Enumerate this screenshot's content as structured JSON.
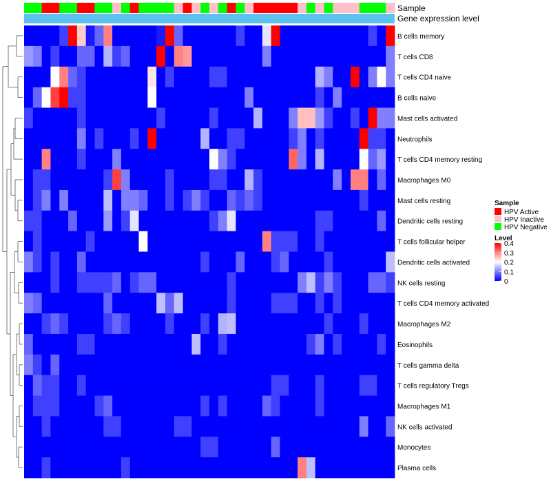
{
  "chart_data": {
    "type": "heatmap",
    "title": "",
    "annotation_tracks": [
      "Sample",
      "Gene expression level"
    ],
    "sample_annotation": [
      "HPV Negative",
      "HPV Negative",
      "HPV Active",
      "HPV Active",
      "HPV Negative",
      "HPV Negative",
      "HPV Active",
      "HPV Active",
      "HPV Negative",
      "HPV Negative",
      "HPV Inactive",
      "HPV Negative",
      "HPV Active",
      "HPV Negative",
      "HPV Negative",
      "HPV Negative",
      "HPV Negative",
      "HPV Inactive",
      "HPV Active",
      "HPV Inactive",
      "HPV Negative",
      "HPV Inactive",
      "HPV Negative",
      "HPV Active",
      "HPV Negative",
      "HPV Inactive",
      "HPV Active",
      "HPV Active",
      "HPV Active",
      "HPV Active",
      "HPV Active",
      "HPV Inactive",
      "HPV Negative",
      "HPV Inactive",
      "HPV Negative",
      "HPV Inactive",
      "HPV Inactive",
      "HPV Inactive",
      "HPV Negative",
      "HPV Negative",
      "HPV Negative",
      "HPV Inactive"
    ],
    "gene_expression_color": "#5bc1ee",
    "rows": [
      "B cells memory",
      "T cells CD8",
      "T cells CD4 naive",
      "B cells naive",
      "Mast cells activated",
      "Neutrophils",
      "T cells CD4 memory resting",
      "Macrophages M0",
      "Mast cells resting",
      "Dendritic cells resting",
      "T cells follicular helper",
      "Dendritic cells activated",
      "NK cells resting",
      "T cells CD4 memory activated",
      "Macrophages M2",
      "Eosinophils",
      "T cells gamma delta",
      "T cells regulatory  Tregs",
      "Macrophages M1",
      "NK cells activated",
      "Monocytes",
      "Plasma cells"
    ],
    "n_columns": 42,
    "values": [
      [
        0.0,
        0.0,
        0.0,
        0.0,
        0.05,
        0.4,
        0.24,
        0.02,
        0.08,
        0.3,
        0.0,
        0.0,
        0.0,
        0.0,
        0.0,
        0.02,
        0.4,
        0.08,
        0.0,
        0.0,
        0.0,
        0.0,
        0.0,
        0.0,
        0.05,
        0.0,
        0.0,
        0.18,
        0.4,
        0.0,
        0.0,
        0.0,
        0.0,
        0.0,
        0.0,
        0.0,
        0.0,
        0.0,
        0.0,
        0.05,
        0.0,
        0.4
      ],
      [
        0.12,
        0.1,
        0.0,
        0.05,
        0.0,
        0.0,
        0.08,
        0.08,
        0.0,
        0.14,
        0.05,
        0.08,
        0.0,
        0.0,
        0.0,
        0.4,
        0.0,
        0.3,
        0.28,
        0.0,
        0.0,
        0.0,
        0.0,
        0.0,
        0.0,
        0.0,
        0.0,
        0.1,
        0.0,
        0.0,
        0.0,
        0.0,
        0.0,
        0.0,
        0.0,
        0.0,
        0.0,
        0.0,
        0.0,
        0.0,
        0.0,
        0.1
      ],
      [
        0.0,
        0.0,
        0.0,
        0.2,
        0.3,
        0.08,
        0.05,
        0.0,
        0.0,
        0.0,
        0.0,
        0.0,
        0.0,
        0.0,
        0.22,
        0.0,
        0.05,
        0.0,
        0.0,
        0.0,
        0.0,
        0.05,
        0.05,
        0.0,
        0.0,
        0.0,
        0.0,
        0.0,
        0.0,
        0.0,
        0.0,
        0.0,
        0.0,
        0.14,
        0.1,
        0.0,
        0.0,
        0.4,
        0.0,
        0.1,
        0.2,
        0.1
      ],
      [
        0.0,
        0.08,
        0.2,
        0.35,
        0.4,
        0.05,
        0.05,
        0.0,
        0.0,
        0.0,
        0.0,
        0.0,
        0.0,
        0.0,
        0.2,
        0.0,
        0.0,
        0.0,
        0.0,
        0.0,
        0.0,
        0.0,
        0.0,
        0.0,
        0.0,
        0.1,
        0.0,
        0.0,
        0.0,
        0.0,
        0.0,
        0.0,
        0.0,
        0.05,
        0.0,
        0.1,
        0.0,
        0.0,
        0.0,
        0.0,
        0.0,
        0.0
      ],
      [
        0.05,
        0.0,
        0.0,
        0.0,
        0.0,
        0.0,
        0.05,
        0.0,
        0.0,
        0.0,
        0.0,
        0.0,
        0.0,
        0.0,
        0.0,
        0.05,
        0.0,
        0.0,
        0.0,
        0.0,
        0.0,
        0.05,
        0.0,
        0.0,
        0.0,
        0.0,
        0.14,
        0.0,
        0.0,
        0.0,
        0.1,
        0.25,
        0.25,
        0.12,
        0.05,
        0.0,
        0.0,
        0.05,
        0.0,
        0.4,
        0.1,
        0.1
      ],
      [
        0.0,
        0.0,
        0.0,
        0.0,
        0.0,
        0.0,
        0.1,
        0.0,
        0.05,
        0.0,
        0.0,
        0.0,
        0.05,
        0.0,
        0.4,
        0.0,
        0.0,
        0.0,
        0.0,
        0.0,
        0.14,
        0.0,
        0.0,
        0.05,
        0.05,
        0.0,
        0.0,
        0.0,
        0.0,
        0.0,
        0.05,
        0.1,
        0.0,
        0.05,
        0.0,
        0.0,
        0.0,
        0.0,
        0.4,
        0.05,
        0.05,
        0.0
      ],
      [
        0.0,
        0.0,
        0.3,
        0.0,
        0.0,
        0.0,
        0.05,
        0.0,
        0.0,
        0.0,
        0.1,
        0.0,
        0.0,
        0.0,
        0.0,
        0.0,
        0.0,
        0.0,
        0.0,
        0.0,
        0.0,
        0.2,
        0.1,
        0.05,
        0.0,
        0.0,
        0.0,
        0.0,
        0.0,
        0.0,
        0.32,
        0.1,
        0.0,
        0.14,
        0.0,
        0.0,
        0.0,
        0.0,
        0.2,
        0.08,
        0.12,
        0.0
      ],
      [
        0.0,
        0.05,
        0.05,
        0.0,
        0.0,
        0.0,
        0.0,
        0.0,
        0.0,
        0.05,
        0.35,
        0.1,
        0.0,
        0.0,
        0.0,
        0.0,
        0.05,
        0.0,
        0.0,
        0.0,
        0.0,
        0.05,
        0.05,
        0.0,
        0.0,
        0.14,
        0.05,
        0.0,
        0.0,
        0.0,
        0.0,
        0.0,
        0.0,
        0.0,
        0.0,
        0.1,
        0.0,
        0.3,
        0.3,
        0.0,
        0.08,
        0.0
      ],
      [
        0.0,
        0.05,
        0.1,
        0.0,
        0.1,
        0.0,
        0.0,
        0.0,
        0.0,
        0.15,
        0.0,
        0.1,
        0.1,
        0.08,
        0.0,
        0.0,
        0.05,
        0.0,
        0.05,
        0.1,
        0.05,
        0.0,
        0.0,
        0.08,
        0.05,
        0.08,
        0.05,
        0.0,
        0.0,
        0.0,
        0.0,
        0.0,
        0.0,
        0.0,
        0.0,
        0.0,
        0.0,
        0.0,
        0.05,
        0.0,
        0.0,
        0.0
      ],
      [
        0.05,
        0.05,
        0.0,
        0.0,
        0.0,
        0.08,
        0.0,
        0.0,
        0.0,
        0.12,
        0.0,
        0.05,
        0.18,
        0.0,
        0.0,
        0.0,
        0.0,
        0.0,
        0.0,
        0.0,
        0.0,
        0.05,
        0.1,
        0.18,
        0.0,
        0.0,
        0.0,
        0.0,
        0.0,
        0.0,
        0.0,
        0.0,
        0.0,
        0.05,
        0.05,
        0.0,
        0.0,
        0.0,
        0.0,
        0.0,
        0.08,
        0.0
      ],
      [
        0.0,
        0.05,
        0.0,
        0.0,
        0.0,
        0.0,
        0.0,
        0.05,
        0.0,
        0.0,
        0.0,
        0.0,
        0.0,
        0.2,
        0.0,
        0.0,
        0.0,
        0.0,
        0.0,
        0.0,
        0.0,
        0.0,
        0.0,
        0.0,
        0.0,
        0.0,
        0.0,
        0.3,
        0.05,
        0.05,
        0.05,
        0.0,
        0.0,
        0.05,
        0.0,
        0.0,
        0.0,
        0.0,
        0.0,
        0.0,
        0.0,
        0.0
      ],
      [
        0.1,
        0.05,
        0.0,
        0.05,
        0.0,
        0.0,
        0.08,
        0.0,
        0.0,
        0.0,
        0.0,
        0.0,
        0.0,
        0.0,
        0.0,
        0.0,
        0.0,
        0.0,
        0.0,
        0.0,
        0.05,
        0.0,
        0.0,
        0.0,
        0.08,
        0.0,
        0.0,
        0.0,
        0.05,
        0.08,
        0.0,
        0.0,
        0.0,
        0.0,
        0.05,
        0.0,
        0.0,
        0.0,
        0.0,
        0.0,
        0.0,
        0.15
      ],
      [
        0.0,
        0.0,
        0.0,
        0.05,
        0.0,
        0.0,
        0.05,
        0.05,
        0.05,
        0.05,
        0.08,
        0.0,
        0.05,
        0.08,
        0.08,
        0.0,
        0.0,
        0.0,
        0.0,
        0.0,
        0.0,
        0.0,
        0.0,
        0.05,
        0.0,
        0.0,
        0.0,
        0.0,
        0.0,
        0.0,
        0.0,
        0.1,
        0.15,
        0.05,
        0.1,
        0.05,
        0.0,
        0.0,
        0.0,
        0.08,
        0.08,
        0.05
      ],
      [
        0.1,
        0.08,
        0.0,
        0.0,
        0.0,
        0.0,
        0.0,
        0.0,
        0.0,
        0.08,
        0.0,
        0.0,
        0.0,
        0.0,
        0.0,
        0.15,
        0.08,
        0.15,
        0.0,
        0.0,
        0.0,
        0.0,
        0.0,
        0.05,
        0.0,
        0.0,
        0.0,
        0.0,
        0.05,
        0.05,
        0.05,
        0.0,
        0.0,
        0.05,
        0.0,
        0.05,
        0.0,
        0.0,
        0.0,
        0.0,
        0.0,
        0.0
      ],
      [
        0.0,
        0.0,
        0.05,
        0.08,
        0.05,
        0.0,
        0.0,
        0.0,
        0.0,
        0.05,
        0.08,
        0.05,
        0.0,
        0.0,
        0.0,
        0.0,
        0.05,
        0.0,
        0.0,
        0.0,
        0.05,
        0.0,
        0.14,
        0.15,
        0.0,
        0.0,
        0.0,
        0.0,
        0.0,
        0.0,
        0.0,
        0.0,
        0.0,
        0.0,
        0.05,
        0.0,
        0.0,
        0.0,
        0.05,
        0.0,
        0.0,
        0.0
      ],
      [
        0.08,
        0.0,
        0.0,
        0.0,
        0.0,
        0.0,
        0.05,
        0.05,
        0.0,
        0.0,
        0.0,
        0.0,
        0.0,
        0.0,
        0.0,
        0.0,
        0.0,
        0.0,
        0.0,
        0.15,
        0.0,
        0.0,
        0.05,
        0.0,
        0.0,
        0.0,
        0.0,
        0.0,
        0.0,
        0.0,
        0.0,
        0.0,
        0.05,
        0.1,
        0.0,
        0.05,
        0.0,
        0.0,
        0.0,
        0.0,
        0.05,
        0.0
      ],
      [
        0.1,
        0.05,
        0.0,
        0.08,
        0.0,
        0.0,
        0.0,
        0.0,
        0.0,
        0.0,
        0.0,
        0.0,
        0.0,
        0.0,
        0.0,
        0.0,
        0.0,
        0.0,
        0.0,
        0.0,
        0.0,
        0.0,
        0.0,
        0.0,
        0.0,
        0.0,
        0.0,
        0.0,
        0.0,
        0.0,
        0.0,
        0.0,
        0.0,
        0.0,
        0.0,
        0.0,
        0.0,
        0.0,
        0.0,
        0.0,
        0.0,
        0.0
      ],
      [
        0.0,
        0.08,
        0.05,
        0.05,
        0.0,
        0.0,
        0.05,
        0.0,
        0.0,
        0.0,
        0.0,
        0.0,
        0.0,
        0.0,
        0.0,
        0.0,
        0.0,
        0.0,
        0.0,
        0.0,
        0.0,
        0.0,
        0.0,
        0.0,
        0.0,
        0.0,
        0.0,
        0.0,
        0.05,
        0.05,
        0.0,
        0.0,
        0.0,
        0.05,
        0.0,
        0.0,
        0.0,
        0.0,
        0.05,
        0.05,
        0.0,
        0.0
      ],
      [
        0.0,
        0.05,
        0.05,
        0.05,
        0.0,
        0.0,
        0.0,
        0.0,
        0.05,
        0.08,
        0.0,
        0.0,
        0.0,
        0.0,
        0.0,
        0.0,
        0.0,
        0.0,
        0.0,
        0.0,
        0.05,
        0.0,
        0.05,
        0.0,
        0.0,
        0.0,
        0.0,
        0.08,
        0.05,
        0.0,
        0.0,
        0.0,
        0.0,
        0.05,
        0.0,
        0.0,
        0.0,
        0.0,
        0.0,
        0.0,
        0.0,
        0.0
      ],
      [
        0.0,
        0.0,
        0.05,
        0.0,
        0.0,
        0.0,
        0.0,
        0.0,
        0.0,
        0.05,
        0.05,
        0.0,
        0.0,
        0.0,
        0.0,
        0.0,
        0.0,
        0.05,
        0.05,
        0.0,
        0.0,
        0.0,
        0.0,
        0.0,
        0.0,
        0.0,
        0.0,
        0.0,
        0.0,
        0.0,
        0.0,
        0.0,
        0.0,
        0.0,
        0.0,
        0.0,
        0.0,
        0.0,
        0.1,
        0.0,
        0.0,
        0.08
      ],
      [
        0.0,
        0.0,
        0.0,
        0.0,
        0.0,
        0.0,
        0.0,
        0.0,
        0.0,
        0.0,
        0.0,
        0.0,
        0.0,
        0.0,
        0.0,
        0.0,
        0.0,
        0.0,
        0.0,
        0.0,
        0.05,
        0.05,
        0.0,
        0.0,
        0.0,
        0.0,
        0.0,
        0.0,
        0.08,
        0.0,
        0.0,
        0.0,
        0.0,
        0.0,
        0.0,
        0.0,
        0.0,
        0.0,
        0.0,
        0.0,
        0.0,
        0.0
      ],
      [
        0.0,
        0.0,
        0.05,
        0.0,
        0.0,
        0.0,
        0.0,
        0.0,
        0.0,
        0.0,
        0.0,
        0.05,
        0.0,
        0.0,
        0.0,
        0.0,
        0.0,
        0.0,
        0.0,
        0.0,
        0.0,
        0.0,
        0.0,
        0.0,
        0.0,
        0.0,
        0.0,
        0.0,
        0.0,
        0.0,
        0.0,
        0.3,
        0.15,
        0.0,
        0.0,
        0.0,
        0.0,
        0.0,
        0.0,
        0.0,
        0.0,
        0.0
      ]
    ],
    "color_scale": {
      "title": "Level",
      "range": [
        0,
        0.4
      ],
      "ticks": [
        "0.4",
        "0.3",
        "0.2",
        "0.1",
        "0"
      ],
      "tick_values": [
        0.4,
        0.3,
        0.2,
        0.1,
        0
      ],
      "low_color": "#0000ff",
      "mid_color": "#ffffff",
      "high_color": "#ff0000",
      "mid_value": 0.2
    },
    "sample_legend": {
      "title": "Sample",
      "entries": [
        {
          "label": "HPV Active",
          "color": "#ff0000"
        },
        {
          "label": "HPV Inactive",
          "color": "#ffc0cb"
        },
        {
          "label": "HPV Negative",
          "color": "#00ff00"
        }
      ]
    }
  }
}
